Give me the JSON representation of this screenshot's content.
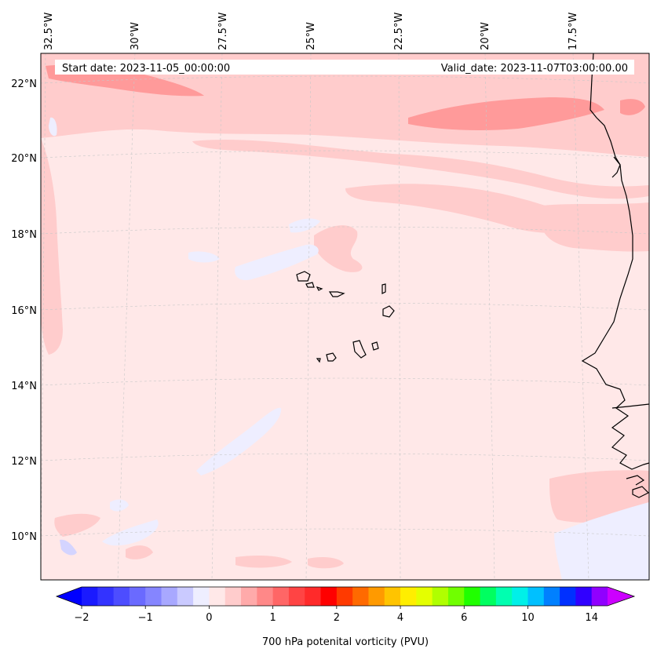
{
  "header": {
    "start_date": "Start date: 2023-11-05_00:00:00",
    "valid_date": "Valid_date: 2023-11-07T03:00:00.00"
  },
  "lon_labels": [
    "32.5°W",
    "30°W",
    "27.5°W",
    "25°W",
    "22.5°W",
    "20°W",
    "17.5°W"
  ],
  "lat_labels": [
    "22°N",
    "20°N",
    "18°N",
    "16°N",
    "14°N",
    "12°N",
    "10°N"
  ],
  "colorbar": {
    "title": "700 hPa potenital vorticity (PVU)",
    "tick_labels": [
      "−2",
      "−1",
      "0",
      "1",
      "2",
      "4",
      "6",
      "10",
      "14"
    ],
    "colors": [
      "#1a1aff",
      "#3333ff",
      "#4d4dff",
      "#6a6aff",
      "#8585ff",
      "#a8a8ff",
      "#cacaff",
      "#eeeeff",
      "#ffe8e8",
      "#ffcccc",
      "#ffaaaa",
      "#ff8888",
      "#ff6666",
      "#ff4444",
      "#ff2a2a",
      "#ff0000",
      "#ff3a00",
      "#ff6a00",
      "#ff9a00",
      "#ffc400",
      "#ffee00",
      "#e4ff00",
      "#b0ff00",
      "#70ff00",
      "#20ff00",
      "#00ff60",
      "#00ffb0",
      "#00f0e8",
      "#00c0ff",
      "#0080ff",
      "#0030ff",
      "#3000ff",
      "#9000ff"
    ],
    "under_color": "#0000ff",
    "over_color": "#cc00ff"
  },
  "colors": {
    "background_fill": "#ffe8e8",
    "light_red": "#ffcccc",
    "medium_red": "#ff9a9a",
    "light_blue": "#eeeeff",
    "coast": "#000000"
  }
}
